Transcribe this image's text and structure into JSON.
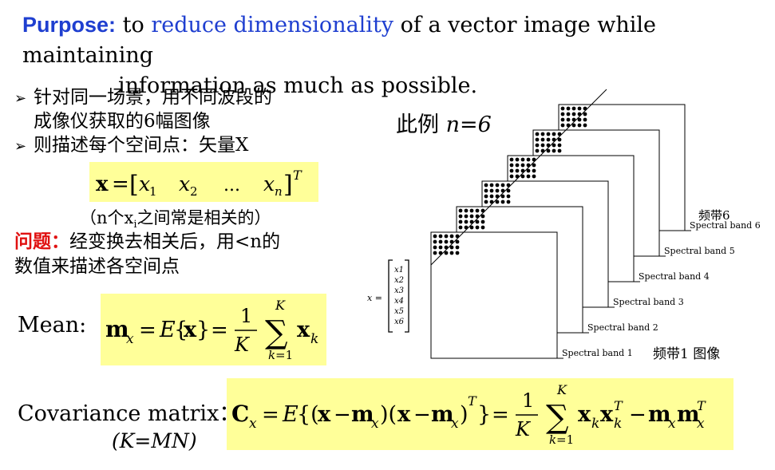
{
  "purpose": {
    "label": "Purpose:",
    "text_before": " to ",
    "highlight": "reduce dimensionality",
    "text_after": " of a vector image while maintaining",
    "line2": "information as much as possible."
  },
  "bullets": [
    {
      "line1": "针对同一场景，用不同波段的",
      "line2": "成像仪获取的6幅图像"
    },
    {
      "line1": "则描述每个空间点：矢量X"
    }
  ],
  "vector_note": "（n个x",
  "vector_note_sub": "i",
  "vector_note_tail": "之间常是相关的）",
  "problem": {
    "label": "问题：",
    "line1": "经变换去相关后，用<n的",
    "line2": "数值来描述各空间点"
  },
  "mean_label": "Mean:",
  "cov_label": "Covariance matrix：",
  "cov_note": "(K=MN)",
  "example_label": "此例",
  "example_value": "n=6",
  "bands": [
    "Spectral band 1",
    "Spectral band 2",
    "Spectral band 3",
    "Spectral band 4",
    "Spectral band 5",
    "Spectral band 6"
  ],
  "band6_cn": "频带6",
  "band1_cn": "频带1 图像",
  "vector_label": "x =",
  "vector_entries": [
    "x1",
    "x2",
    "x3",
    "x4",
    "x5",
    "x6"
  ],
  "colors": {
    "accent_blue": "#1f3fd0",
    "highlight": "#ffff99",
    "red": "#e01010"
  }
}
